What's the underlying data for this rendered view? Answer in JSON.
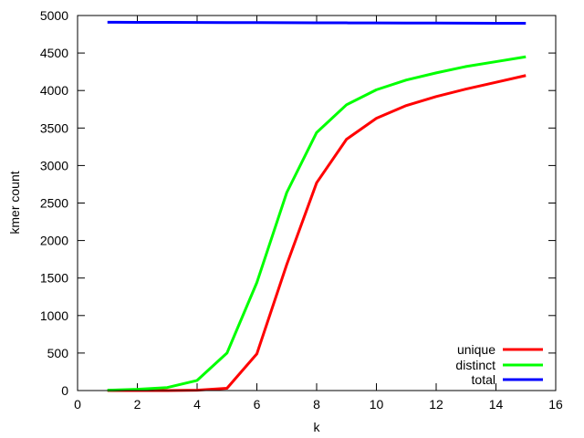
{
  "chart_data": {
    "type": "line",
    "title": "",
    "xlabel": "k",
    "ylabel": "kmer count",
    "xlim": [
      0,
      16
    ],
    "ylim": [
      0,
      5000
    ],
    "xticks": [
      0,
      2,
      4,
      6,
      8,
      10,
      12,
      14,
      16
    ],
    "yticks": [
      0,
      500,
      1000,
      1500,
      2000,
      2500,
      3000,
      3500,
      4000,
      4500,
      5000
    ],
    "legend_position": "bottom-right",
    "grid": false,
    "x": [
      1,
      2,
      3,
      4,
      5,
      6,
      7,
      8,
      9,
      10,
      11,
      12,
      13,
      14,
      15
    ],
    "series": [
      {
        "name": "unique",
        "color": "#ff0000",
        "values": [
          0,
          0,
          0,
          5,
          30,
          490,
          1680,
          2770,
          3350,
          3630,
          3800,
          3920,
          4020,
          4110,
          4200
        ]
      },
      {
        "name": "distinct",
        "color": "#00ff00",
        "values": [
          4,
          16,
          40,
          135,
          500,
          1440,
          2640,
          3440,
          3810,
          4010,
          4140,
          4235,
          4320,
          4385,
          4450
        ]
      },
      {
        "name": "total",
        "color": "#0000ff",
        "values": [
          4910,
          4909,
          4908,
          4907,
          4906,
          4905,
          4904,
          4903,
          4902,
          4901,
          4900,
          4899,
          4898,
          4897,
          4896
        ]
      }
    ]
  }
}
